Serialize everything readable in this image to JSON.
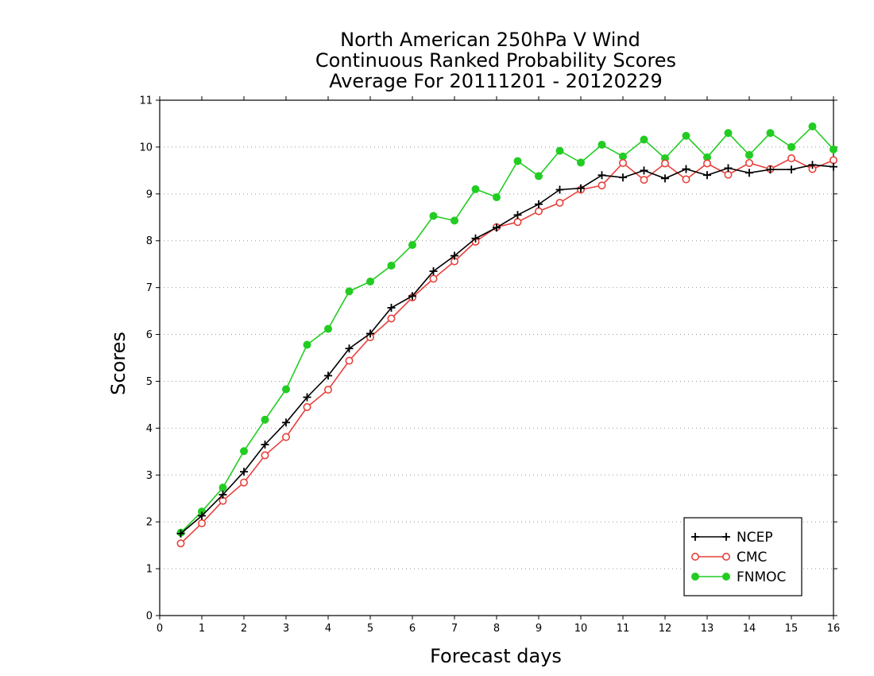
{
  "chart_data": {
    "type": "line",
    "title_lines": [
      "North American 250hPa V Wind",
      "Continuous Ranked Probability Scores",
      "Average For 20111201 - 20120229"
    ],
    "xlabel": "Forecast days",
    "ylabel": "Scores",
    "xlim": [
      0,
      16
    ],
    "ylim": [
      0,
      11
    ],
    "x_ticks": [
      "0",
      "1",
      "2",
      "3",
      "4",
      "5",
      "6",
      "7",
      "8",
      "9",
      "10",
      "11",
      "12",
      "13",
      "14",
      "15",
      "16"
    ],
    "y_ticks": [
      "0",
      "1",
      "2",
      "3",
      "4",
      "5",
      "6",
      "7",
      "8",
      "9",
      "10",
      "11"
    ],
    "grid": "horizontal dotted",
    "legend_placement": "bottom-right",
    "x": [
      0.5,
      1,
      1.5,
      2,
      2.5,
      3,
      3.5,
      4,
      4.5,
      5,
      5.5,
      6,
      6.5,
      7,
      7.5,
      8,
      8.5,
      9,
      9.5,
      10,
      10.5,
      11,
      11.5,
      12,
      12.5,
      13,
      13.5,
      14,
      14.5,
      15,
      15.5,
      16
    ],
    "series": [
      {
        "name": "NCEP",
        "color": "#000000",
        "marker": "plus",
        "values": [
          1.75,
          2.13,
          2.58,
          3.07,
          3.65,
          4.12,
          4.66,
          5.12,
          5.7,
          6.02,
          6.57,
          6.82,
          7.35,
          7.68,
          8.05,
          8.28,
          8.55,
          8.78,
          9.09,
          9.12,
          9.4,
          9.35,
          9.5,
          9.33,
          9.53,
          9.4,
          9.55,
          9.45,
          9.52,
          9.52,
          9.62,
          9.58
        ]
      },
      {
        "name": "CMC",
        "color": "#e8413c",
        "marker": "open-circle",
        "values": [
          1.54,
          1.97,
          2.45,
          2.84,
          3.42,
          3.81,
          4.45,
          4.82,
          5.44,
          5.94,
          6.34,
          6.79,
          7.19,
          7.56,
          7.98,
          8.29,
          8.4,
          8.63,
          8.81,
          9.09,
          9.18,
          9.66,
          9.3,
          9.65,
          9.31,
          9.65,
          9.41,
          9.66,
          9.53,
          9.76,
          9.53,
          9.72
        ]
      },
      {
        "name": "FNMOC",
        "color": "#22cc22",
        "marker": "filled-circle",
        "values": [
          1.77,
          2.22,
          2.73,
          3.51,
          4.18,
          4.83,
          5.78,
          6.12,
          6.92,
          7.13,
          7.47,
          7.91,
          8.53,
          8.43,
          9.1,
          8.93,
          9.7,
          9.38,
          9.92,
          9.67,
          10.05,
          9.8,
          10.16,
          9.76,
          10.24,
          9.78,
          10.3,
          9.83,
          10.3,
          10.0,
          10.44,
          9.95
        ]
      }
    ]
  }
}
